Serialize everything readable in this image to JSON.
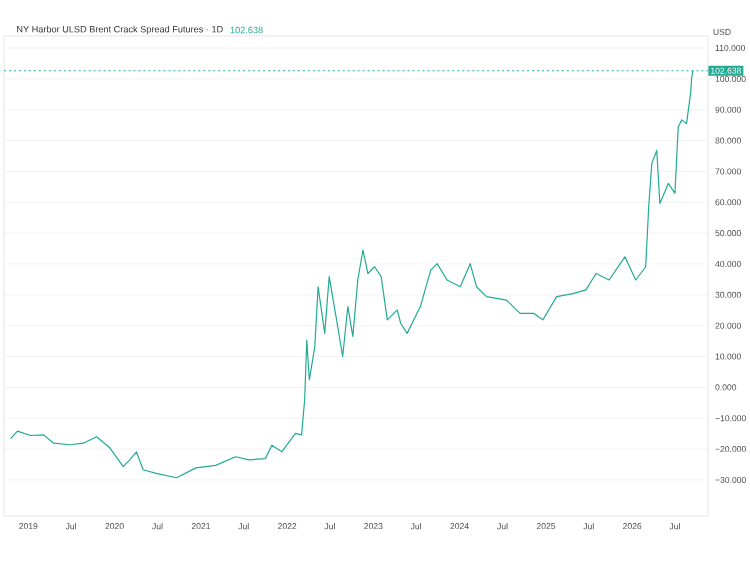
{
  "chart_data": {
    "type": "line",
    "title": "NY Harbor ULSD Brent Crack Spread Futures · 1D",
    "ylabel": "USD",
    "annotations": [
      "102.638"
    ],
    "x": [
      "2018-10-18",
      "2018-11-16",
      "2019-01-11",
      "2019-03-07",
      "2019-04-18",
      "2019-06-27",
      "2019-08-22",
      "2019-10-17",
      "2019-12-12",
      "2020-02-07",
      "2020-03-05",
      "2020-04-03",
      "2020-05-01",
      "2020-06-26",
      "2020-09-19",
      "2020-12-11",
      "2021-03-04",
      "2021-05-28",
      "2021-07-22",
      "2021-10-01",
      "2021-10-28",
      "2021-12-09",
      "2022-02-05",
      "2022-03-03",
      "2022-03-16",
      "2022-03-25",
      "2022-04-05",
      "2022-04-28",
      "2022-05-12",
      "2022-06-09",
      "2022-06-28",
      "2022-08-03",
      "2022-08-24",
      "2022-09-15",
      "2022-10-06",
      "2022-10-27",
      "2022-11-18",
      "2022-12-09",
      "2023-01-06",
      "2023-02-03",
      "2023-03-01",
      "2023-04-12",
      "2023-04-27",
      "2023-05-24",
      "2023-07-19",
      "2023-09-01",
      "2023-09-28",
      "2023-11-09",
      "2024-01-04",
      "2024-02-15",
      "2024-03-13",
      "2024-04-24",
      "2024-07-18",
      "2024-09-13",
      "2024-11-09",
      "2024-12-19",
      "2025-02-15",
      "2025-04-25",
      "2025-06-19",
      "2025-08-01",
      "2025-09-25",
      "2025-12-01",
      "2026-01-16",
      "2026-02-27",
      "2026-03-12",
      "2026-03-25",
      "2026-04-15",
      "2026-04-28",
      "2026-06-03",
      "2026-07-01",
      "2026-07-15",
      "2026-07-30",
      "2026-08-19",
      "2026-09-05",
      "2026-09-10",
      "2026-09-15"
    ],
    "series": [
      {
        "color": "#22ab94",
        "values": [
          -16.6,
          -14.2,
          -15.6,
          -15.4,
          -18.1,
          -18.6,
          -18.1,
          -16,
          -19.6,
          -25.7,
          -23.5,
          -20.9,
          -26.7,
          -27.9,
          -29.3,
          -26.1,
          -25.3,
          -22.5,
          -23.5,
          -23.1,
          -18.8,
          -20.9,
          -14.9,
          -15.4,
          -4.1,
          15.3,
          2.4,
          13.2,
          32.6,
          17.5,
          35.9,
          19.7,
          10,
          26.2,
          16.5,
          34.8,
          44.5,
          36.9,
          39.1,
          35.9,
          21.9,
          25.1,
          20.7,
          17.5,
          26.2,
          38,
          40.1,
          34.8,
          32.6,
          40.1,
          32.6,
          29.4,
          28.3,
          24,
          24,
          21.9,
          29.4,
          30.4,
          31.6,
          36.9,
          34.8,
          42.3,
          34.8,
          39.1,
          58.6,
          72.6,
          76.8,
          59.6,
          66.1,
          62.9,
          84.5,
          86.7,
          85.5,
          95.2,
          100.5,
          102.638
        ]
      }
    ],
    "xlim": [
      "2018-09-20",
      "2026-11-18"
    ],
    "xticks": [
      {
        "value": "2019-01-01",
        "label": "2019"
      },
      {
        "value": "2019-07-01",
        "label": "Jul"
      },
      {
        "value": "2020-01-01",
        "label": "2020"
      },
      {
        "value": "2020-07-01",
        "label": "Jul"
      },
      {
        "value": "2021-01-01",
        "label": "2021"
      },
      {
        "value": "2021-07-01",
        "label": "Jul"
      },
      {
        "value": "2022-01-01",
        "label": "2022"
      },
      {
        "value": "2022-07-01",
        "label": "Jul"
      },
      {
        "value": "2023-01-01",
        "label": "2023"
      },
      {
        "value": "2023-07-01",
        "label": "Jul"
      },
      {
        "value": "2024-01-01",
        "label": "2024"
      },
      {
        "value": "2024-07-01",
        "label": "Jul"
      },
      {
        "value": "2025-01-01",
        "label": "2025"
      },
      {
        "value": "2025-07-01",
        "label": "Jul"
      },
      {
        "value": "2026-01-01",
        "label": "2026"
      },
      {
        "value": "2026-07-01",
        "label": "Jul"
      }
    ],
    "ylim": [
      -41.7,
      113.9
    ],
    "yticks": [
      {
        "value": -30,
        "label": "−30.000"
      },
      {
        "value": -20,
        "label": "−20.000"
      },
      {
        "value": -10,
        "label": "−10.000"
      },
      {
        "value": 0,
        "label": "0.000"
      },
      {
        "value": 10,
        "label": "10.000"
      },
      {
        "value": 20,
        "label": "20.000"
      },
      {
        "value": 30,
        "label": "30.000"
      },
      {
        "value": 40,
        "label": "40.000"
      },
      {
        "value": 50,
        "label": "50.000"
      },
      {
        "value": 60,
        "label": "60.000"
      },
      {
        "value": 70,
        "label": "70.000"
      },
      {
        "value": 80,
        "label": "80.000"
      },
      {
        "value": 90,
        "label": "90.000"
      },
      {
        "value": 100,
        "label": "100.000"
      },
      {
        "value": 110,
        "label": "110.000"
      }
    ],
    "grid": "y",
    "line_style": "solid",
    "ref_lines": [
      {
        "axis": "y",
        "value": 102.638,
        "label": "102.638",
        "color": "#22ab94",
        "line_style": "dotted"
      }
    ]
  }
}
